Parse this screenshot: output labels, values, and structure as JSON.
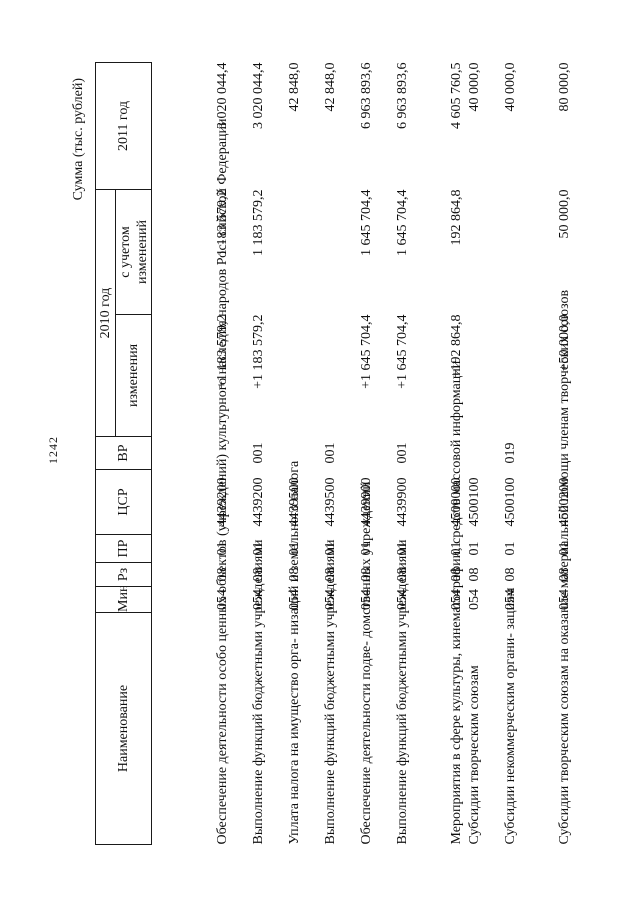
{
  "page": {
    "number": "1242",
    "sum_caption": "Сумма (тыс. рублей)"
  },
  "table": {
    "headers": {
      "name": "Наименование",
      "min": "Мин",
      "rz": "Рз",
      "pr": "ПР",
      "csr": "ЦСР",
      "vr": "ВР",
      "year2010": "2010 год",
      "changes": "изменения",
      "with_changes": "с учетом\nизменений",
      "year2011": "2011 год"
    },
    "rows": [
      {
        "name": "Обеспечение деятельности особо\nценных объектов (учреждений)\nкультурного наследия народов Рос-\nсийской Федерации",
        "min": "054",
        "rz": "08",
        "pr": "01",
        "csr": "4439200",
        "vr": "",
        "changes": "+1 183 579,2",
        "with_changes": "1 183 579,2",
        "year2011": "3 020 044,4"
      },
      {
        "name": "Выполнение функций бюджетными\nучреждениями",
        "min": "054",
        "rz": "08",
        "pr": "01",
        "csr": "4439200",
        "vr": "001",
        "changes": "+1 183 579,2",
        "with_changes": "1 183 579,2",
        "year2011": "3 020 044,4"
      },
      {
        "name": "Уплата налога на имущество орга-\nнизаций и земельного налога",
        "min": "054",
        "rz": "08",
        "pr": "01",
        "csr": "4439500",
        "vr": "",
        "changes": "",
        "with_changes": "",
        "year2011": "42 848,0"
      },
      {
        "name": "Выполнение функций бюджетными\nучреждениями",
        "min": "054",
        "rz": "08",
        "pr": "01",
        "csr": "4439500",
        "vr": "001",
        "changes": "",
        "with_changes": "",
        "year2011": "42 848,0"
      },
      {
        "name": "Обеспечение деятельности подве-\nдомственных учреждений",
        "min": "054",
        "rz": "08",
        "pr": "01",
        "csr": "4439900",
        "vr": "",
        "changes": "+1 645 704,4",
        "with_changes": "1 645 704,4",
        "year2011": "6 963 893,6"
      },
      {
        "name": "Выполнение функций бюджетными\nучреждениями",
        "min": "054",
        "rz": "08",
        "pr": "01",
        "csr": "4439900",
        "vr": "001",
        "changes": "+1 645 704,4",
        "with_changes": "1 645 704,4",
        "year2011": "6 963 893,6"
      },
      {
        "name": "Мероприятия в сфере культуры,\nкинематографии, средств массовой\nинформации",
        "min": "054",
        "rz": "08",
        "pr": "01",
        "csr": "4500000",
        "vr": "",
        "changes": "+192 864,8",
        "with_changes": "192 864,8",
        "year2011": "4 605 760,5"
      },
      {
        "name": "Субсидии творческим союзам",
        "min": "054",
        "rz": "08",
        "pr": "01",
        "csr": "4500100",
        "vr": "",
        "changes": "",
        "with_changes": "",
        "year2011": "40 000,0"
      },
      {
        "name": "Субсидии некоммерческим органи-\nзациям",
        "min": "054",
        "rz": "08",
        "pr": "01",
        "csr": "4500100",
        "vr": "019",
        "changes": "",
        "with_changes": "",
        "year2011": "40 000,0"
      },
      {
        "name": "Субсидии творческим союзам на\nоказание материальной помощи\nчленам творческих союзов",
        "min": "054",
        "rz": "08",
        "pr": "01",
        "csr": "4500200",
        "vr": "",
        "changes": "+50 000,0",
        "with_changes": "50 000,0",
        "year2011": "80 000,0"
      }
    ]
  }
}
